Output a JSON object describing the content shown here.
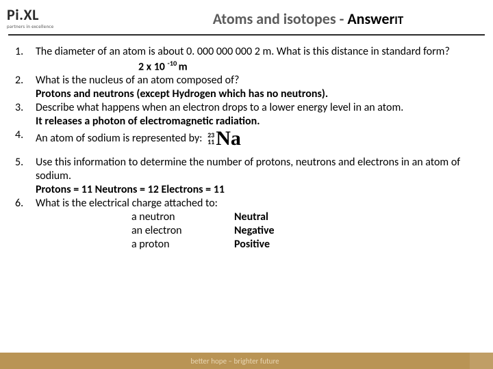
{
  "logo": {
    "main": "Pi.XL",
    "sub": "partners in excellence"
  },
  "title": {
    "grey": "Atoms and isotopes - ",
    "black_a": "Answer",
    "black_b": "IT"
  },
  "q1": {
    "num": "1.",
    "text": "The diameter of an atom is about 0. 000 000 000 2 m. What is this distance in standard form?",
    "ans_pre": "2 x 10 ",
    "ans_exp": "-10 ",
    "ans_post": "m"
  },
  "q2": {
    "num": "2.",
    "text": "What is the nucleus of an atom composed of?",
    "ans": "Protons and neutrons (except Hydrogen which has no neutrons)."
  },
  "q3": {
    "num": "3.",
    "text": "Describe what happens when an electron drops to a lower energy level in an atom.",
    "ans": "It releases a photon of electromagnetic radiation."
  },
  "q4": {
    "num": "4.",
    "text": "An atom of sodium is represented by:",
    "mass": "23",
    "atomic": "11",
    "symbol": "Na"
  },
  "q5": {
    "num": "5.",
    "text": "Use this information to determine the number of protons, neutrons and electrons in an atom of sodium.",
    "ans": " Protons = 11   Neutrons = 12   Electrons = 11"
  },
  "q6": {
    "num": "6.",
    "text": "What is the electrical charge attached to:",
    "r1a": "a neutron",
    "r1b": "Neutral",
    "r2a": "an electron",
    "r2b": "Negative",
    "r3a": "a proton",
    "r3b": "Positive"
  },
  "footer": "better hope – brighter future"
}
